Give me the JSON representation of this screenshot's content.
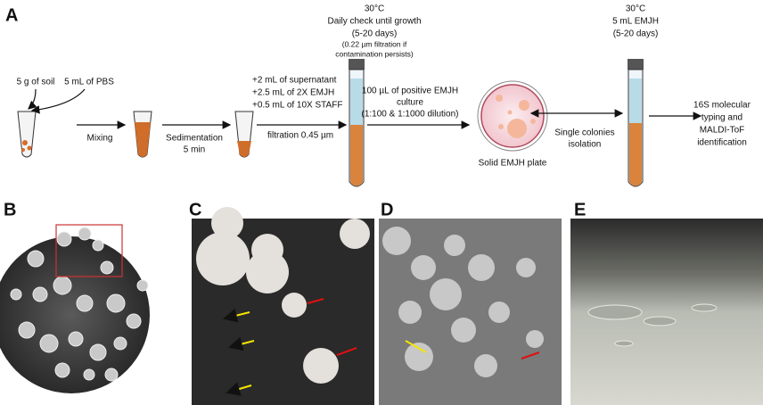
{
  "panels": {
    "a": "A",
    "b": "B",
    "c": "C",
    "d": "D",
    "e": "E"
  },
  "workflow": {
    "soil": "5 g of soil",
    "pbs": "5 mL of PBS",
    "mixing": "Mixing",
    "sedimentation": [
      "Sedimentation",
      "5 min"
    ],
    "additions": [
      "+2 mL of supernatant",
      "+2.5 mL of 2X EMJH",
      "+0.5 mL of 10X STAFF"
    ],
    "filtration": "filtration 0.45 µm",
    "incubation": [
      "30°C",
      "Daily check until growth",
      "(5-20 days)",
      "(0.22 µm filtration if",
      "contamination persists)"
    ],
    "plating": [
      "100 µL of positive EMJH",
      "culture",
      "(1:100 & 1:1000 dilution)"
    ],
    "plate": "Solid EMJH plate",
    "isolation": [
      "Single colonies",
      "isolation"
    ],
    "subculture": [
      "30°C",
      "5 mL EMJH",
      "(5-20 days)"
    ],
    "identification": [
      "16S molecular",
      "typing and",
      "MALDI-ToF",
      "identification"
    ]
  }
}
